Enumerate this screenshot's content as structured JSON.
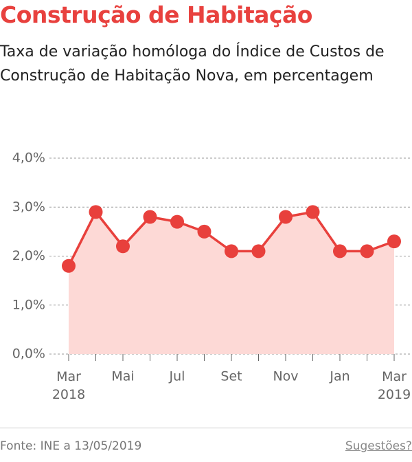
{
  "chart_data": {
    "type": "line",
    "title": "Construção de Habitação",
    "subtitle": "Taxa de variação homóloga do Índice de Custos de Construção de Habitação Nova, em percentagem",
    "categories": [
      "Mar 2018",
      null,
      "Mai",
      null,
      "Jul",
      null,
      "Set",
      null,
      "Nov",
      null,
      "Jan",
      null,
      "Mar 2019"
    ],
    "series": [
      {
        "name": "Taxa de variação homóloga",
        "color": "#e8403c",
        "area_color": "#fdd9d6",
        "values": [
          1.8,
          2.9,
          2.2,
          2.8,
          2.7,
          2.5,
          2.1,
          2.1,
          2.8,
          2.9,
          2.1,
          2.1,
          2.3
        ]
      }
    ],
    "ylim": [
      0,
      4
    ],
    "yticks": [
      {
        "value": 0,
        "label": "0,0%"
      },
      {
        "value": 1,
        "label": "1,0%"
      },
      {
        "value": 2,
        "label": "2,0%"
      },
      {
        "value": 3,
        "label": "3,0%"
      },
      {
        "value": 4,
        "label": "4,0%"
      }
    ],
    "grid": true,
    "source": "Fonte: INE a 13/05/2019",
    "link": "Sugestões?"
  }
}
